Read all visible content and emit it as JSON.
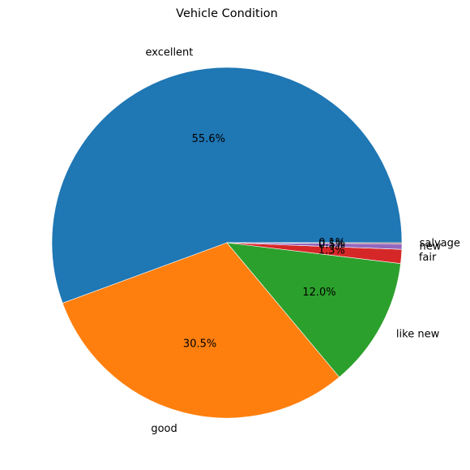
{
  "chart_data": {
    "type": "pie",
    "title": "Vehicle Condition",
    "slices": [
      {
        "label": "excellent",
        "value": 55.6,
        "pct_label": "55.6%",
        "color": "#1f77b4"
      },
      {
        "label": "good",
        "value": 30.5,
        "pct_label": "30.5%",
        "color": "#ff7f0e"
      },
      {
        "label": "like new",
        "value": 12.0,
        "pct_label": "12.0%",
        "color": "#2ca02c"
      },
      {
        "label": "fair",
        "value": 1.3,
        "pct_label": "1.3%",
        "color": "#d62728"
      },
      {
        "label": "new",
        "value": 0.5,
        "pct_label": "0.5%",
        "color": "#9467bd"
      },
      {
        "label": "salvage",
        "value": 0.1,
        "pct_label": "0.1%",
        "color": "#8c564b"
      }
    ],
    "start_angle_deg": 0,
    "direction": "counterclockwise",
    "legend": "none"
  }
}
